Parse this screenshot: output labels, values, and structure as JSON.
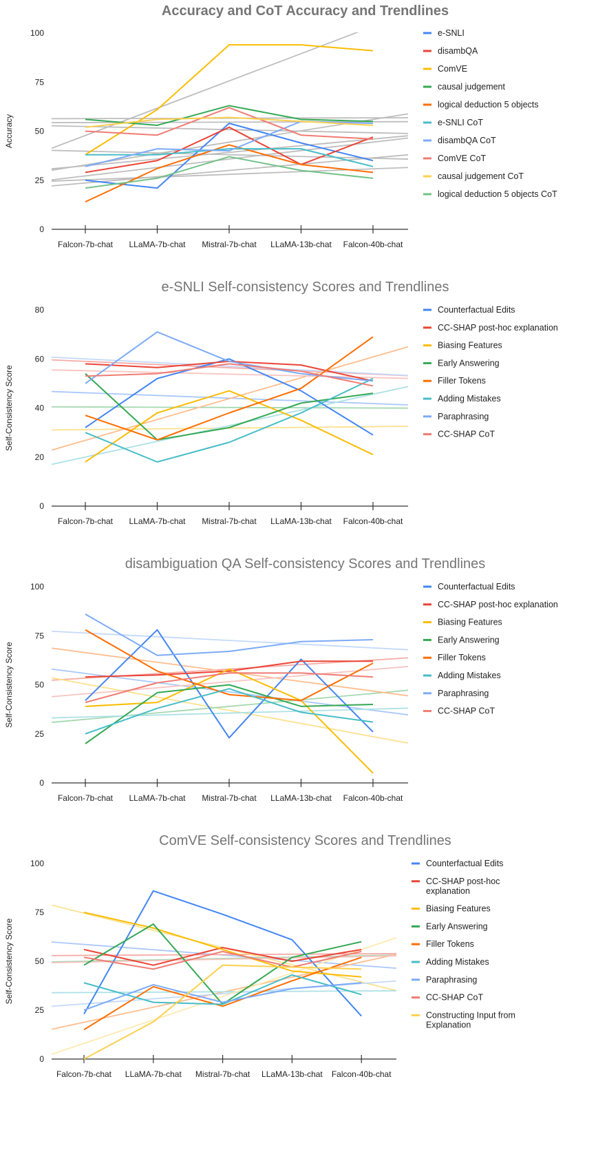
{
  "chart_data": [
    {
      "type": "line",
      "title": "Accuracy and CoT Accuracy and Trendlines",
      "title_bold": true,
      "ylabel": "Accuracy",
      "xlabel": "",
      "categories": [
        "Falcon-7b-chat",
        "LLaMA-7b-chat",
        "Mistral-7b-chat",
        "LLaMA-13b-chat",
        "Falcon-40b-chat"
      ],
      "ylim": [
        0,
        100
      ],
      "yticks": [
        0,
        25,
        50,
        75,
        100
      ],
      "trendlines": true,
      "trendline_color": "#bdbdbd",
      "legend_position": "right",
      "series": [
        {
          "name": "e-SNLI",
          "color": "#4285f4",
          "values": [
            25,
            21,
            54,
            44,
            35
          ]
        },
        {
          "name": "disambQA",
          "color": "#ea4335",
          "values": [
            29,
            35,
            52,
            33,
            47
          ]
        },
        {
          "name": "ComVE",
          "color": "#fbbc04",
          "values": [
            38,
            61,
            94,
            94,
            91
          ]
        },
        {
          "name": "causal judgement",
          "color": "#34a853",
          "values": [
            56,
            53,
            63,
            56,
            55
          ]
        },
        {
          "name": "logical deduction 5 objects",
          "color": "#ff6d01",
          "values": [
            14,
            31,
            43,
            33,
            29
          ]
        },
        {
          "name": "e-SNLI CoT",
          "color": "#46bdc6",
          "values": [
            38,
            38,
            41,
            41,
            32
          ]
        },
        {
          "name": "disambQA CoT",
          "color": "#7baaf7",
          "values": [
            32,
            41,
            40,
            55,
            54
          ]
        },
        {
          "name": "ComVE CoT",
          "color": "#f07b72",
          "values": [
            50,
            48,
            62,
            48,
            46
          ]
        },
        {
          "name": "causal judgement CoT",
          "color": "#fcd04f",
          "values": [
            52,
            56,
            57,
            55,
            53
          ]
        },
        {
          "name": "logical deduction 5 objects CoT",
          "color": "#71c287",
          "values": [
            21,
            26,
            37,
            30,
            26
          ]
        }
      ]
    },
    {
      "type": "line",
      "title": "e-SNLI Self-consistency Scores and Trendlines",
      "title_bold": false,
      "ylabel": "Self-Consistency Score",
      "xlabel": "",
      "categories": [
        "Falcon-7b-chat",
        "LLaMA-7b-chat",
        "Mistral-7b-chat",
        "LLaMA-13b-chat",
        "Falcon-40b-chat"
      ],
      "ylim": [
        0,
        80
      ],
      "yticks": [
        0,
        20,
        40,
        60,
        80
      ],
      "trendlines": true,
      "legend_position": "right",
      "series": [
        {
          "name": "Counterfactual Edits",
          "color": "#4285f4",
          "values": [
            32,
            52,
            60,
            47,
            29
          ]
        },
        {
          "name": "CC-SHAP post-hoc explanation",
          "color": "#ea4335",
          "values": [
            58,
            56.5,
            59,
            57.5,
            51
          ]
        },
        {
          "name": "Biasing Features",
          "color": "#fbbc04",
          "values": [
            18,
            38,
            47,
            35,
            21
          ]
        },
        {
          "name": "Early Answering",
          "color": "#34a853",
          "values": [
            54,
            27,
            32,
            42,
            46
          ]
        },
        {
          "name": "Filler Tokens",
          "color": "#ff6d01",
          "values": [
            37,
            27,
            38,
            48,
            69
          ]
        },
        {
          "name": "Adding Mistakes",
          "color": "#46bdc6",
          "values": [
            30,
            18,
            26,
            38,
            52
          ]
        },
        {
          "name": "Paraphrasing",
          "color": "#7baaf7",
          "values": [
            50,
            71,
            59,
            54,
            51
          ]
        },
        {
          "name": "CC-SHAP CoT",
          "color": "#f07b72",
          "values": [
            53,
            54,
            58,
            55,
            49
          ]
        }
      ]
    },
    {
      "type": "line",
      "title": "disambiguation QA Self-consistency Scores and Trendlines",
      "title_bold": false,
      "ylabel": "Self-Consistency Score",
      "xlabel": "",
      "categories": [
        "Falcon-7b-chat",
        "LLaMA-7b-chat",
        "Mistral-7b-chat",
        "LLaMA-13b-chat",
        "Falcon-40b-chat"
      ],
      "ylim": [
        0,
        100
      ],
      "yticks": [
        0,
        25,
        50,
        75,
        100
      ],
      "trendlines": true,
      "legend_position": "right",
      "series": [
        {
          "name": "Counterfactual Edits",
          "color": "#4285f4",
          "values": [
            42,
            78,
            23,
            63,
            26
          ]
        },
        {
          "name": "CC-SHAP post-hoc explanation",
          "color": "#ea4335",
          "values": [
            54,
            55,
            57,
            62,
            62
          ]
        },
        {
          "name": "Biasing Features",
          "color": "#fbbc04",
          "values": [
            39,
            41,
            58,
            42,
            5
          ]
        },
        {
          "name": "Early Answering",
          "color": "#34a853",
          "values": [
            20,
            46,
            50,
            39,
            40
          ]
        },
        {
          "name": "Filler Tokens",
          "color": "#ff6d01",
          "values": [
            78,
            57,
            45,
            42,
            61
          ]
        },
        {
          "name": "Adding Mistakes",
          "color": "#46bdc6",
          "values": [
            25,
            38,
            48,
            36,
            31
          ]
        },
        {
          "name": "Paraphrasing",
          "color": "#7baaf7",
          "values": [
            86,
            65,
            67,
            72,
            73
          ]
        },
        {
          "name": "CC-SHAP CoT",
          "color": "#f07b72",
          "values": [
            41,
            51,
            56,
            56,
            54
          ]
        }
      ]
    },
    {
      "type": "line",
      "title": "ComVE Self-consistency Scores and Trendlines",
      "title_bold": false,
      "ylabel": "Self-Consistency Score",
      "xlabel": "",
      "categories": [
        "Falcon-7b-chat",
        "LLaMA-7b-chat",
        "Mistral-7b-chat",
        "LLaMA-13b-chat",
        "Falcon-40b-chat"
      ],
      "ylim": [
        0,
        100
      ],
      "yticks": [
        0,
        25,
        50,
        75,
        100
      ],
      "trendlines": true,
      "legend_position": "right",
      "series": [
        {
          "name": "Counterfactual Edits",
          "color": "#4285f4",
          "values": [
            23,
            86,
            74,
            61,
            22
          ]
        },
        {
          "name": "CC-SHAP post-hoc explanation",
          "color": "#ea4335",
          "values": [
            56,
            48,
            57,
            50,
            56
          ]
        },
        {
          "name": "Biasing Features",
          "color": "#fbbc04",
          "values": [
            75,
            67,
            56,
            45,
            42
          ]
        },
        {
          "name": "Early Answering",
          "color": "#34a853",
          "values": [
            48,
            69,
            28,
            52,
            60
          ]
        },
        {
          "name": "Filler Tokens",
          "color": "#ff6d01",
          "values": [
            15,
            37,
            27,
            40,
            52
          ]
        },
        {
          "name": "Adding Mistakes",
          "color": "#46bdc6",
          "values": [
            39,
            29,
            28,
            43,
            33
          ]
        },
        {
          "name": "Paraphrasing",
          "color": "#7baaf7",
          "values": [
            25,
            38,
            29,
            36,
            39
          ]
        },
        {
          "name": "CC-SHAP CoT",
          "color": "#f07b72",
          "values": [
            52,
            46,
            55,
            47,
            55
          ]
        },
        {
          "name": "Constructing Input from Explanation",
          "color": "#fcd04f",
          "values": [
            0,
            19,
            48,
            47,
            46
          ]
        }
      ]
    }
  ]
}
